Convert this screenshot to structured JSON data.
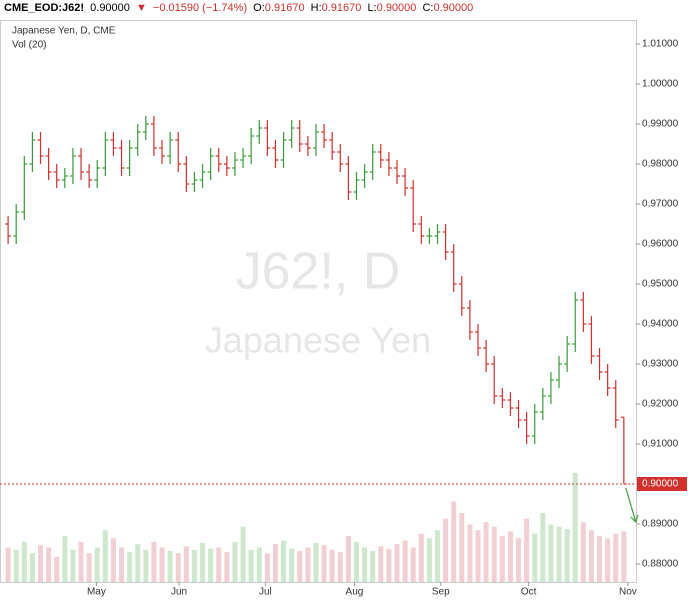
{
  "header": {
    "symbol": "CME_EOD:J62!",
    "last": "0.90000",
    "arrow": "▼",
    "change": "−0.01590 (−1.74%)",
    "o_label": "O:",
    "o": "0.91670",
    "h_label": "H:",
    "h": "0.91670",
    "l_label": "L:",
    "l": "0.90000",
    "c_label": "C:",
    "c": "0.90000"
  },
  "chart_data": {
    "type": "ohlc",
    "legend": "Japanese Yen, D, CME",
    "volume_legend": "Vol (20)",
    "watermark": "J62!, D",
    "watermark_sub": "Japanese Yen",
    "up_color": "#3a9b3a",
    "down_color": "#d0312d",
    "volume_up_color": "#cde8cd",
    "volume_down_color": "#f2cfd3",
    "open": [
      0.965,
      0.962,
      0.968,
      0.98,
      0.986,
      0.982,
      0.978,
      0.976,
      0.977,
      0.982,
      0.978,
      0.976,
      0.979,
      0.986,
      0.984,
      0.979,
      0.984,
      0.988,
      0.99,
      0.984,
      0.982,
      0.986,
      0.98,
      0.975,
      0.976,
      0.978,
      0.982,
      0.98,
      0.979,
      0.981,
      0.982,
      0.987,
      0.989,
      0.984,
      0.981,
      0.986,
      0.989,
      0.985,
      0.984,
      0.988,
      0.986,
      0.983,
      0.98,
      0.973,
      0.976,
      0.978,
      0.983,
      0.981,
      0.979,
      0.977,
      0.974,
      0.965,
      0.962,
      0.962,
      0.963,
      0.958,
      0.95,
      0.944,
      0.938,
      0.934,
      0.93,
      0.922,
      0.921,
      0.919,
      0.916,
      0.912,
      0.918,
      0.922,
      0.926,
      0.93,
      0.935,
      0.946,
      0.94,
      0.932,
      0.928,
      0.924,
      0.9167
    ],
    "high": [
      0.967,
      0.97,
      0.982,
      0.988,
      0.988,
      0.984,
      0.98,
      0.979,
      0.984,
      0.984,
      0.98,
      0.981,
      0.988,
      0.988,
      0.986,
      0.986,
      0.99,
      0.992,
      0.992,
      0.986,
      0.988,
      0.988,
      0.982,
      0.978,
      0.98,
      0.984,
      0.984,
      0.982,
      0.983,
      0.984,
      0.989,
      0.991,
      0.991,
      0.986,
      0.988,
      0.991,
      0.991,
      0.987,
      0.99,
      0.99,
      0.988,
      0.985,
      0.982,
      0.978,
      0.98,
      0.985,
      0.985,
      0.983,
      0.981,
      0.979,
      0.976,
      0.967,
      0.964,
      0.965,
      0.965,
      0.96,
      0.952,
      0.946,
      0.94,
      0.936,
      0.932,
      0.924,
      0.923,
      0.921,
      0.918,
      0.92,
      0.924,
      0.928,
      0.932,
      0.937,
      0.948,
      0.948,
      0.942,
      0.934,
      0.93,
      0.926,
      0.9167
    ],
    "low": [
      0.96,
      0.96,
      0.966,
      0.978,
      0.98,
      0.976,
      0.974,
      0.974,
      0.975,
      0.976,
      0.974,
      0.974,
      0.977,
      0.982,
      0.977,
      0.977,
      0.982,
      0.986,
      0.982,
      0.98,
      0.98,
      0.978,
      0.973,
      0.973,
      0.974,
      0.976,
      0.978,
      0.977,
      0.977,
      0.979,
      0.98,
      0.985,
      0.982,
      0.979,
      0.979,
      0.984,
      0.983,
      0.982,
      0.982,
      0.984,
      0.981,
      0.978,
      0.971,
      0.971,
      0.974,
      0.976,
      0.979,
      0.977,
      0.975,
      0.972,
      0.963,
      0.96,
      0.96,
      0.96,
      0.956,
      0.948,
      0.942,
      0.936,
      0.932,
      0.928,
      0.92,
      0.919,
      0.917,
      0.914,
      0.91,
      0.91,
      0.916,
      0.92,
      0.924,
      0.928,
      0.933,
      0.938,
      0.93,
      0.926,
      0.922,
      0.914,
      0.9
    ],
    "close": [
      0.962,
      0.968,
      0.98,
      0.986,
      0.982,
      0.978,
      0.976,
      0.977,
      0.982,
      0.978,
      0.976,
      0.979,
      0.986,
      0.984,
      0.979,
      0.984,
      0.988,
      0.99,
      0.984,
      0.982,
      0.986,
      0.98,
      0.975,
      0.976,
      0.978,
      0.982,
      0.98,
      0.979,
      0.981,
      0.982,
      0.987,
      0.989,
      0.984,
      0.981,
      0.986,
      0.989,
      0.985,
      0.984,
      0.988,
      0.986,
      0.983,
      0.98,
      0.973,
      0.976,
      0.978,
      0.983,
      0.981,
      0.979,
      0.977,
      0.974,
      0.965,
      0.962,
      0.962,
      0.963,
      0.958,
      0.95,
      0.944,
      0.938,
      0.934,
      0.93,
      0.922,
      0.921,
      0.919,
      0.916,
      0.912,
      0.918,
      0.922,
      0.926,
      0.93,
      0.935,
      0.946,
      0.94,
      0.932,
      0.928,
      0.924,
      0.916,
      0.9
    ],
    "volume": [
      30,
      28,
      35,
      25,
      32,
      30,
      22,
      40,
      28,
      35,
      25,
      30,
      45,
      38,
      30,
      26,
      33,
      28,
      35,
      30,
      27,
      25,
      31,
      28,
      34,
      29,
      30,
      26,
      35,
      48,
      28,
      30,
      25,
      33,
      36,
      29,
      27,
      30,
      34,
      32,
      28,
      26,
      40,
      35,
      30,
      27,
      31,
      29,
      33,
      36,
      30,
      42,
      38,
      45,
      55,
      70,
      60,
      50,
      45,
      52,
      48,
      40,
      44,
      38,
      55,
      42,
      60,
      50,
      48,
      46,
      95,
      52,
      45,
      40,
      38,
      42,
      44
    ],
    "volume_ylim": [
      0,
      100
    ],
    "last_price": {
      "value": 0.9,
      "label": "0.90000"
    },
    "ylim": [
      0.8755,
      1.016
    ],
    "yticks": [
      {
        "value": 0.88,
        "label": "0.88000"
      },
      {
        "value": 0.89,
        "label": "0.89000"
      },
      {
        "value": 0.9,
        "label": "0.90000"
      },
      {
        "value": 0.91,
        "label": "0.91000"
      },
      {
        "value": 0.92,
        "label": "0.92000"
      },
      {
        "value": 0.93,
        "label": "0.93000"
      },
      {
        "value": 0.94,
        "label": "0.94000"
      },
      {
        "value": 0.95,
        "label": "0.95000"
      },
      {
        "value": 0.96,
        "label": "0.96000"
      },
      {
        "value": 0.97,
        "label": "0.97000"
      },
      {
        "value": 0.98,
        "label": "0.98000"
      },
      {
        "value": 0.99,
        "label": "0.99000"
      },
      {
        "value": 1.0,
        "label": "1.00000"
      },
      {
        "value": 1.01,
        "label": "1.01000"
      }
    ],
    "xlim": [
      -1,
      77.5
    ],
    "xticks": [
      {
        "value": 10.9,
        "label": "May"
      },
      {
        "value": 21.1,
        "label": "Jun"
      },
      {
        "value": 31.75,
        "label": "Jul"
      },
      {
        "value": 42.75,
        "label": "Aug"
      },
      {
        "value": 53.4,
        "label": "Sep"
      },
      {
        "value": 64.25,
        "label": "Oct"
      },
      {
        "value": 76.5,
        "label": "Nov"
      }
    ]
  }
}
